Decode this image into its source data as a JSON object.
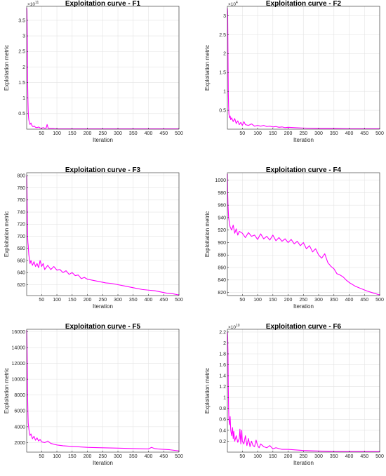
{
  "colors": {
    "series": "#ff00ff"
  },
  "chart_data": [
    {
      "type": "line",
      "title": "Exploitation curve - F1",
      "xlabel": "Iteration",
      "ylabel": "Exploitation metric",
      "xlim": [
        1,
        500
      ],
      "ylim": [
        0,
        3.95
      ],
      "exponent": "11",
      "grid": true,
      "xticks": [
        50,
        100,
        150,
        200,
        250,
        300,
        350,
        400,
        450,
        500
      ],
      "yticks": [
        0.5,
        1,
        1.5,
        2,
        2.5,
        3,
        3.5
      ],
      "series": [
        {
          "x": [
            1,
            2,
            3,
            4,
            5,
            6,
            7,
            8,
            10,
            12,
            15,
            18,
            22,
            26,
            30,
            35,
            40,
            45,
            50,
            55,
            60,
            65,
            68,
            70,
            72,
            75,
            80,
            90,
            100,
            120,
            150,
            200,
            250,
            300,
            350,
            400,
            450,
            500
          ],
          "y": [
            3.9,
            3.8,
            3.0,
            1.6,
            1.0,
            0.6,
            0.4,
            0.3,
            0.22,
            0.15,
            0.2,
            0.12,
            0.08,
            0.1,
            0.06,
            0.05,
            0.07,
            0.04,
            0.03,
            0.05,
            0.03,
            0.04,
            0.15,
            0.08,
            0.03,
            0.02,
            0.02,
            0.02,
            0.01,
            0.01,
            0.01,
            0.01,
            0.01,
            0.01,
            0.01,
            0.01,
            0.01,
            0.01
          ]
        }
      ]
    },
    {
      "type": "line",
      "title": "Exploitation curve - F2",
      "xlabel": "Iteration",
      "ylabel": "Exploitation metric",
      "xlim": [
        1,
        500
      ],
      "ylim": [
        0,
        3.25
      ],
      "exponent": "4",
      "grid": true,
      "xticks": [
        50,
        100,
        150,
        200,
        250,
        300,
        350,
        400,
        450,
        500
      ],
      "yticks": [
        0.5,
        1,
        1.5,
        2,
        2.5,
        3
      ],
      "series": [
        {
          "x": [
            1,
            2,
            3,
            4,
            5,
            6,
            8,
            10,
            12,
            15,
            20,
            25,
            30,
            35,
            40,
            45,
            50,
            55,
            60,
            70,
            80,
            90,
            100,
            110,
            120,
            130,
            140,
            150,
            160,
            170,
            180,
            190,
            200,
            220,
            250,
            300,
            350,
            400,
            450,
            500
          ],
          "y": [
            3.2,
            3.1,
            2.0,
            1.0,
            0.6,
            0.4,
            0.3,
            0.35,
            0.25,
            0.3,
            0.2,
            0.28,
            0.15,
            0.22,
            0.12,
            0.18,
            0.1,
            0.2,
            0.12,
            0.1,
            0.14,
            0.08,
            0.1,
            0.08,
            0.1,
            0.07,
            0.08,
            0.06,
            0.07,
            0.05,
            0.06,
            0.04,
            0.05,
            0.04,
            0.03,
            0.02,
            0.02,
            0.01,
            0.01,
            0.01
          ]
        }
      ]
    },
    {
      "type": "line",
      "title": "Exploitation curve - F3",
      "xlabel": "Iteration",
      "ylabel": "Exploitation metric",
      "xlim": [
        1,
        500
      ],
      "ylim": [
        602,
        805
      ],
      "grid": true,
      "xticks": [
        50,
        100,
        150,
        200,
        250,
        300,
        350,
        400,
        450,
        500
      ],
      "yticks": [
        620,
        640,
        660,
        680,
        700,
        720,
        740,
        760,
        780,
        800
      ],
      "series": [
        {
          "x": [
            1,
            2,
            3,
            4,
            5,
            6,
            8,
            10,
            12,
            15,
            20,
            25,
            30,
            35,
            40,
            45,
            50,
            55,
            60,
            70,
            80,
            90,
            100,
            110,
            120,
            130,
            140,
            150,
            160,
            170,
            180,
            190,
            200,
            220,
            240,
            260,
            280,
            300,
            320,
            340,
            360,
            380,
            400,
            420,
            440,
            460,
            480,
            500
          ],
          "y": [
            800,
            780,
            740,
            700,
            690,
            685,
            670,
            662,
            655,
            660,
            652,
            658,
            650,
            655,
            648,
            660,
            650,
            655,
            645,
            652,
            645,
            650,
            644,
            645,
            640,
            643,
            637,
            640,
            635,
            636,
            630,
            632,
            629,
            627,
            625,
            623,
            622,
            620,
            618,
            616,
            614,
            612,
            611,
            610,
            608,
            606,
            605,
            603
          ]
        }
      ]
    },
    {
      "type": "line",
      "title": "Exploitation curve - F4",
      "xlabel": "Iteration",
      "ylabel": "Exploitation metric",
      "xlim": [
        1,
        500
      ],
      "ylim": [
        815,
        1012
      ],
      "grid": true,
      "xticks": [
        50,
        100,
        150,
        200,
        250,
        300,
        350,
        400,
        450,
        500
      ],
      "yticks": [
        820,
        840,
        860,
        880,
        900,
        920,
        940,
        960,
        980,
        1000
      ],
      "series": [
        {
          "x": [
            1,
            2,
            3,
            5,
            8,
            10,
            15,
            20,
            25,
            30,
            35,
            40,
            50,
            60,
            70,
            80,
            90,
            100,
            110,
            120,
            130,
            140,
            150,
            160,
            170,
            180,
            190,
            200,
            210,
            220,
            230,
            240,
            250,
            260,
            270,
            280,
            290,
            300,
            310,
            320,
            330,
            340,
            350,
            360,
            370,
            380,
            390,
            400,
            420,
            440,
            460,
            480,
            500
          ],
          "y": [
            1010,
            980,
            960,
            940,
            930,
            925,
            920,
            928,
            915,
            922,
            912,
            918,
            915,
            908,
            916,
            910,
            912,
            905,
            914,
            906,
            910,
            904,
            912,
            903,
            908,
            902,
            906,
            900,
            905,
            898,
            902,
            895,
            900,
            890,
            895,
            885,
            890,
            880,
            875,
            882,
            868,
            862,
            858,
            850,
            848,
            845,
            840,
            836,
            830,
            826,
            822,
            819,
            816
          ]
        }
      ]
    },
    {
      "type": "line",
      "title": "Exploitation curve - F5",
      "xlabel": "Iteration",
      "ylabel": "Exploitation metric",
      "xlim": [
        1,
        500
      ],
      "ylim": [
        800,
        16300
      ],
      "grid": true,
      "xticks": [
        50,
        100,
        150,
        200,
        250,
        300,
        350,
        400,
        450,
        500
      ],
      "yticks": [
        2000,
        4000,
        6000,
        8000,
        10000,
        12000,
        14000,
        16000
      ],
      "series": [
        {
          "x": [
            1,
            2,
            3,
            4,
            5,
            6,
            8,
            10,
            12,
            15,
            20,
            25,
            30,
            35,
            40,
            45,
            50,
            60,
            70,
            80,
            90,
            100,
            120,
            140,
            160,
            180,
            200,
            250,
            300,
            350,
            400,
            410,
            420,
            430,
            450,
            470,
            490,
            500
          ],
          "y": [
            16200,
            15000,
            12000,
            8000,
            6000,
            4500,
            3800,
            3200,
            2900,
            3100,
            2500,
            2800,
            2300,
            2600,
            2200,
            2400,
            2100,
            2000,
            2200,
            1900,
            1800,
            1700,
            1600,
            1550,
            1500,
            1450,
            1400,
            1350,
            1300,
            1250,
            1200,
            1400,
            1250,
            1200,
            1150,
            1100,
            1000,
            950
          ]
        }
      ]
    },
    {
      "type": "line",
      "title": "Exploitation curve - F6",
      "xlabel": "Iteration",
      "ylabel": "Exploitation metric",
      "xlim": [
        1,
        500
      ],
      "ylim": [
        0,
        2.25
      ],
      "exponent": "10",
      "grid": true,
      "xticks": [
        50,
        100,
        150,
        200,
        250,
        300,
        350,
        400,
        450,
        500
      ],
      "yticks": [
        0.2,
        0.4,
        0.6,
        0.8,
        1,
        1.2,
        1.4,
        1.6,
        1.8,
        2,
        2.2
      ],
      "series": [
        {
          "x": [
            1,
            2,
            3,
            4,
            5,
            6,
            8,
            10,
            12,
            15,
            18,
            20,
            22,
            25,
            30,
            35,
            40,
            42,
            45,
            48,
            50,
            55,
            60,
            65,
            70,
            75,
            80,
            85,
            90,
            95,
            100,
            105,
            110,
            120,
            130,
            140,
            150,
            160,
            180,
            200,
            250,
            300,
            350,
            400,
            450,
            500
          ],
          "y": [
            2.2,
            2.1,
            1.8,
            1.2,
            0.8,
            0.6,
            0.5,
            0.65,
            0.4,
            0.3,
            0.45,
            0.25,
            0.38,
            0.2,
            0.3,
            0.18,
            0.25,
            0.42,
            0.15,
            0.4,
            0.2,
            0.15,
            0.3,
            0.12,
            0.25,
            0.1,
            0.2,
            0.12,
            0.1,
            0.22,
            0.12,
            0.08,
            0.15,
            0.1,
            0.08,
            0.12,
            0.06,
            0.08,
            0.05,
            0.05,
            0.03,
            0.02,
            0.01,
            0.01,
            0.01,
            0.01
          ]
        }
      ]
    }
  ]
}
